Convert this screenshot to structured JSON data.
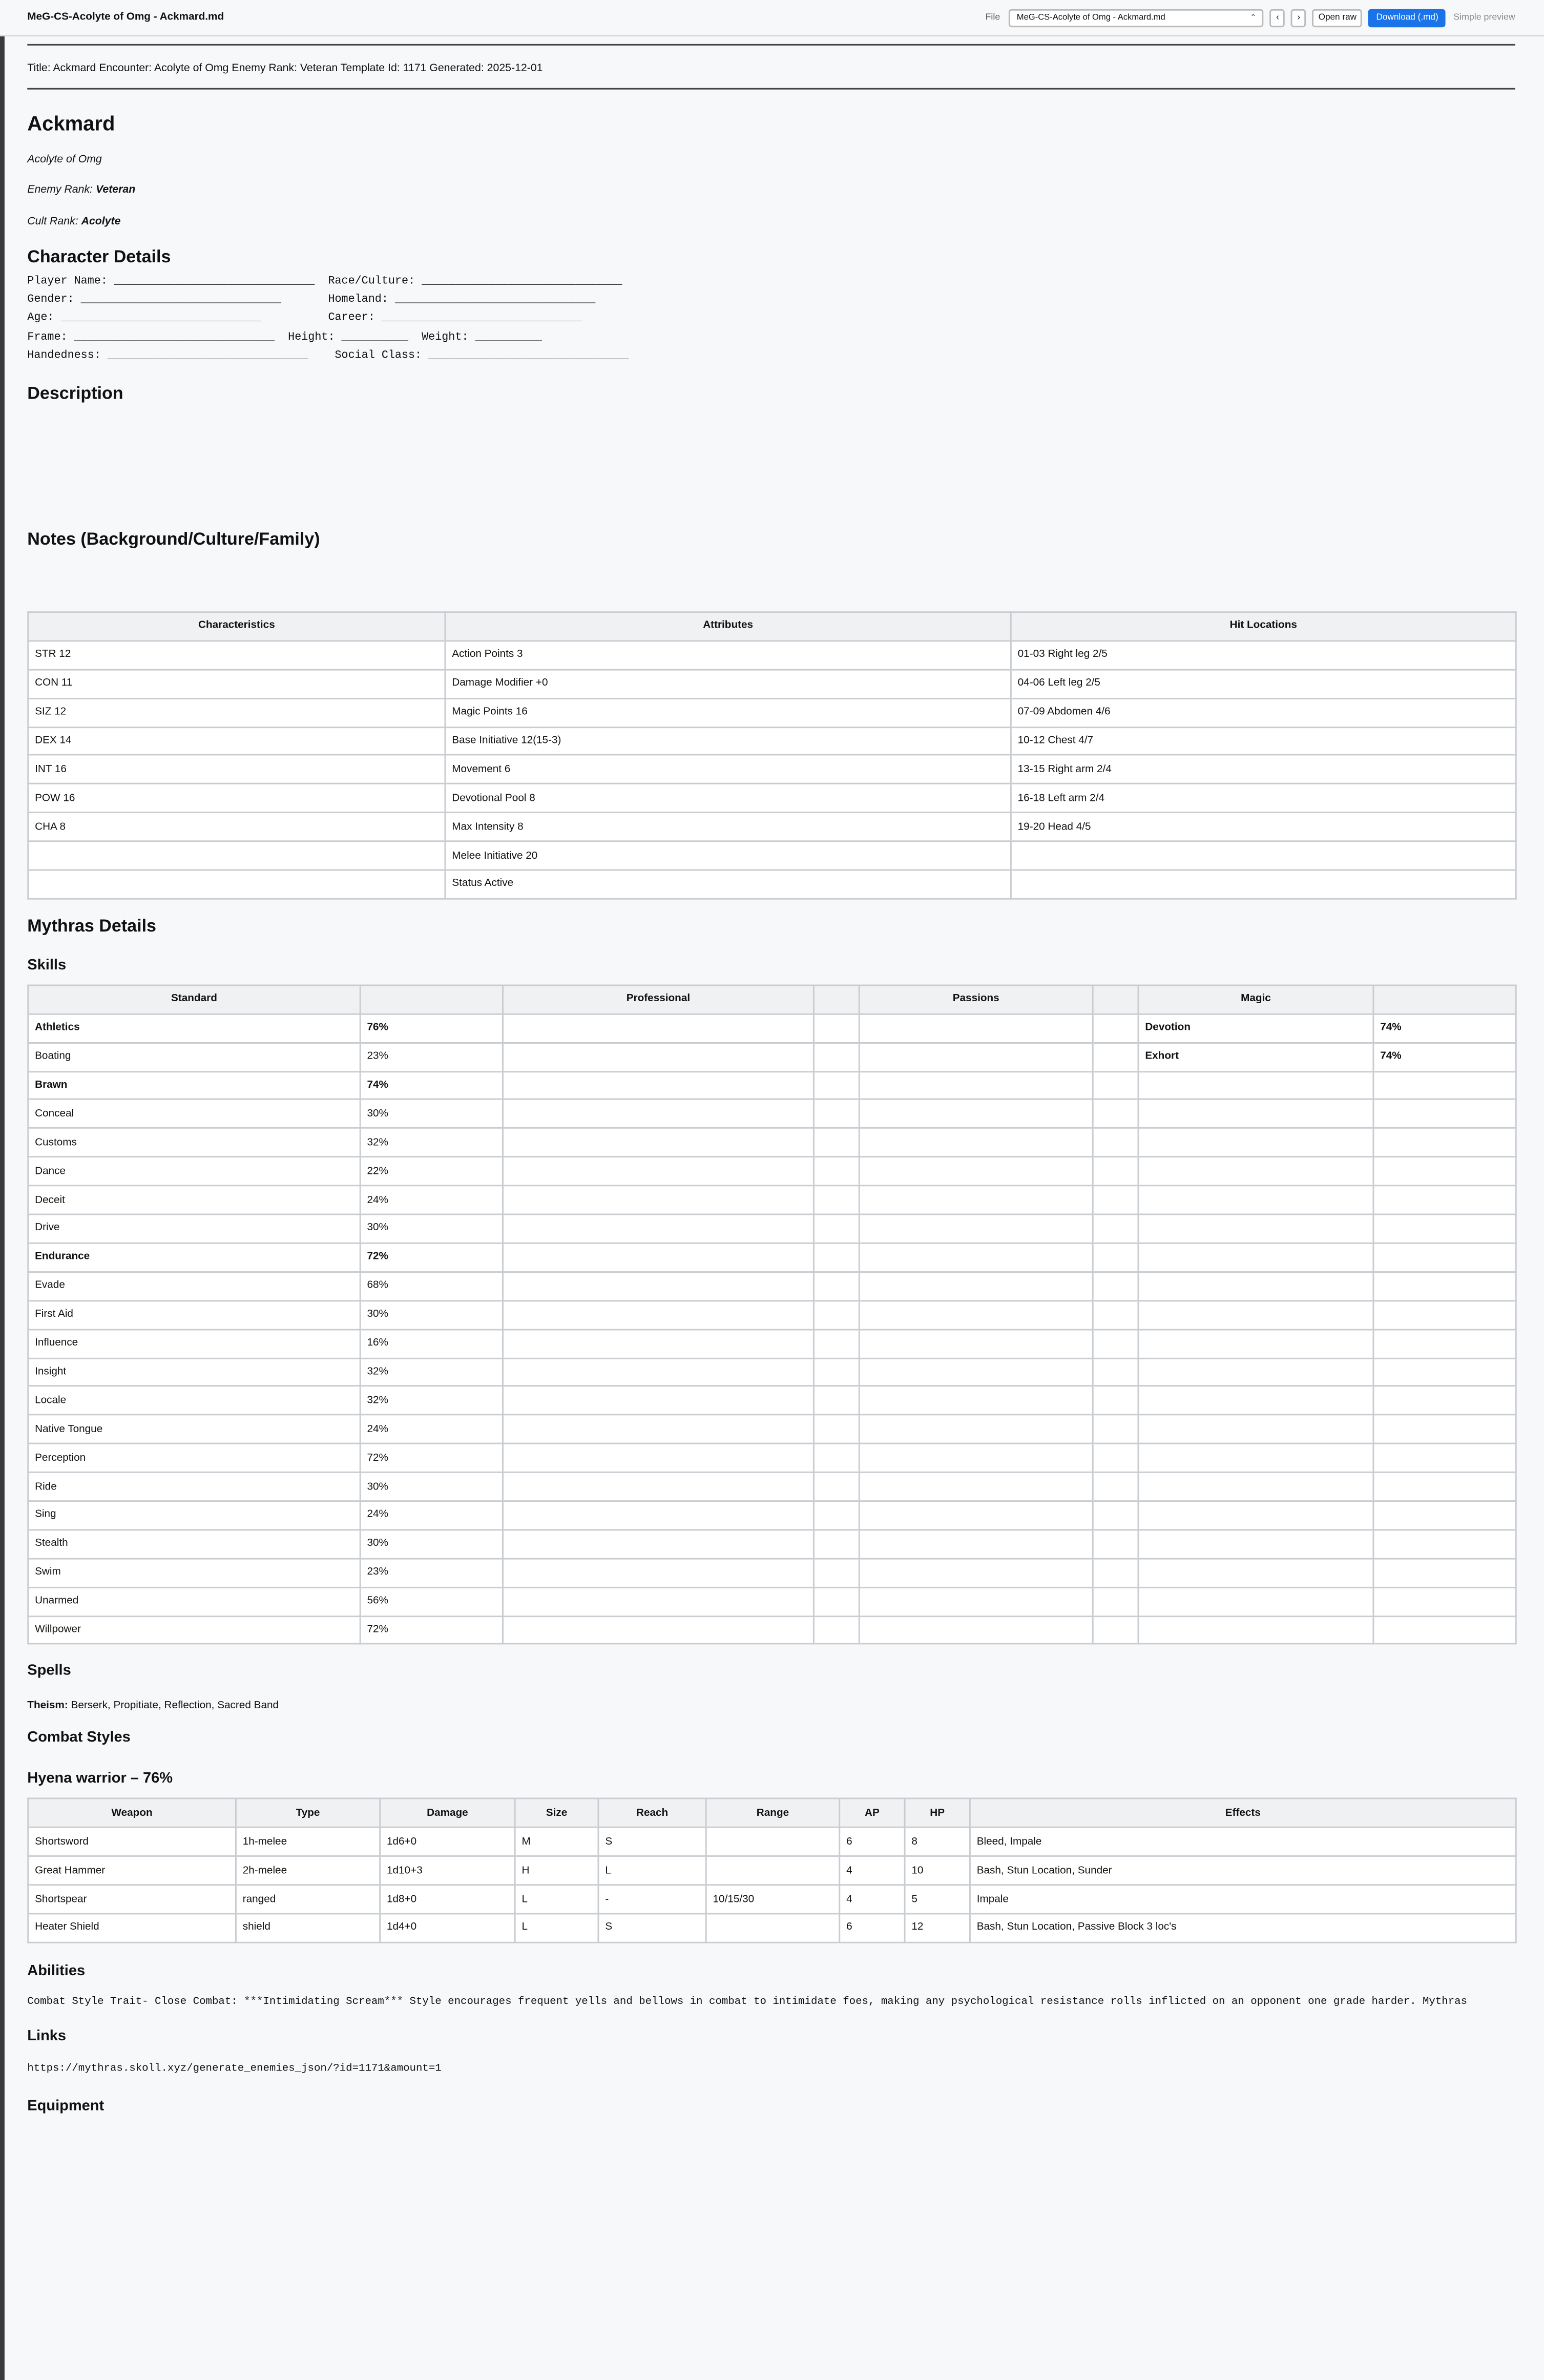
{
  "toolbar": {
    "file_title": "MeG-CS-Acolyte of Omg - Ackmard.md",
    "file_label": "File",
    "file_select": "MeG-CS-Acolyte of Omg - Ackmard.md",
    "prev": "‹",
    "next": "›",
    "open_raw": "Open raw",
    "download": "Download (.md)",
    "preview": "Simple preview"
  },
  "meta_line": "Title: Ackmard Encounter: Acolyte of Omg Enemy Rank: Veteran Template Id: 1171 Generated: 2025-12-01",
  "name": "Ackmard",
  "subtitle": "Acolyte of Omg",
  "ranks": [
    {
      "label": "Enemy Rank:",
      "value": "Veteran"
    },
    {
      "label": "Cult Rank:",
      "value": "Acolyte"
    }
  ],
  "character_details": {
    "heading": "Character Details",
    "lines": [
      "Player Name: ______________________________  Race/Culture: ______________________________",
      "Gender: ______________________________       Homeland: ______________________________",
      "Age: ______________________________          Career: ______________________________",
      "Frame: ______________________________  Height: __________  Weight: __________",
      "Handedness: ______________________________    Social Class: ______________________________"
    ]
  },
  "description_heading": "Description",
  "notes_heading": "Notes (Background/Culture/Family)",
  "stats_table": {
    "headers": [
      "Characteristics",
      "Attributes",
      "Hit Locations"
    ],
    "rows": [
      [
        "STR 12",
        "Action Points 3",
        "01-03 Right leg 2/5"
      ],
      [
        "CON 11",
        "Damage Modifier +0",
        "04-06 Left leg 2/5"
      ],
      [
        "SIZ 12",
        "Magic Points 16",
        "07-09 Abdomen 4/6"
      ],
      [
        "DEX 14",
        "Base Initiative 12(15-3)",
        "10-12 Chest 4/7"
      ],
      [
        "INT 16",
        "Movement 6",
        "13-15 Right arm 2/4"
      ],
      [
        "POW 16",
        "Devotional Pool 8",
        "16-18 Left arm 2/4"
      ],
      [
        "CHA 8",
        "Max Intensity 8",
        "19-20 Head 4/5"
      ],
      [
        null,
        "Melee Initiative 20",
        null
      ],
      [
        null,
        "Status Active",
        null
      ]
    ]
  },
  "mythras_heading": "Mythras Details",
  "skills_heading": "Skills",
  "skills_table": {
    "headers": [
      "Standard",
      null,
      "Professional",
      null,
      "Passions",
      null,
      "Magic",
      null
    ],
    "standard": [
      {
        "name": "Athletics",
        "value": "76%",
        "bold": true
      },
      {
        "name": "Boating",
        "value": "23%",
        "bold": false
      },
      {
        "name": "Brawn",
        "value": "74%",
        "bold": true
      },
      {
        "name": "Conceal",
        "value": "30%",
        "bold": false
      },
      {
        "name": "Customs",
        "value": "32%",
        "bold": false
      },
      {
        "name": "Dance",
        "value": "22%",
        "bold": false
      },
      {
        "name": "Deceit",
        "value": "24%",
        "bold": false
      },
      {
        "name": "Drive",
        "value": "30%",
        "bold": false
      },
      {
        "name": "Endurance",
        "value": "72%",
        "bold": true
      },
      {
        "name": "Evade",
        "value": "68%",
        "bold": false
      },
      {
        "name": "First Aid",
        "value": "30%",
        "bold": false
      },
      {
        "name": "Influence",
        "value": "16%",
        "bold": false
      },
      {
        "name": "Insight",
        "value": "32%",
        "bold": false
      },
      {
        "name": "Locale",
        "value": "32%",
        "bold": false
      },
      {
        "name": "Native Tongue",
        "value": "24%",
        "bold": false
      },
      {
        "name": "Perception",
        "value": "72%",
        "bold": false
      },
      {
        "name": "Ride",
        "value": "30%",
        "bold": false
      },
      {
        "name": "Sing",
        "value": "24%",
        "bold": false
      },
      {
        "name": "Stealth",
        "value": "30%",
        "bold": false
      },
      {
        "name": "Swim",
        "value": "23%",
        "bold": false
      },
      {
        "name": "Unarmed",
        "value": "56%",
        "bold": false
      },
      {
        "name": "Willpower",
        "value": "72%",
        "bold": false
      }
    ],
    "magic": [
      {
        "name": "Devotion",
        "value": "74%",
        "bold": true
      },
      {
        "name": "Exhort",
        "value": "74%",
        "bold": true
      }
    ]
  },
  "spells_heading": "Spells",
  "spells": {
    "label": "Theism:",
    "text": " Berserk, Propitiate, Reflection, Sacred Band"
  },
  "combat_heading": "Combat Styles",
  "style_heading": "Hyena warrior – 76%",
  "weapons_table": {
    "headers": [
      "Weapon",
      "Type",
      "Damage",
      "Size",
      "Reach",
      "Range",
      "AP",
      "HP",
      "Effects"
    ],
    "rows": [
      [
        "Shortsword",
        "1h-melee",
        "1d6+0",
        "M",
        "S",
        null,
        "6",
        "8",
        "Bleed, Impale"
      ],
      [
        "Great Hammer",
        "2h-melee",
        "1d10+3",
        "H",
        "L",
        null,
        "4",
        "10",
        "Bash, Stun Location, Sunder"
      ],
      [
        "Shortspear",
        "ranged",
        "1d8+0",
        "L",
        "-",
        "10/15/30",
        "4",
        "5",
        "Impale"
      ],
      [
        "Heater Shield",
        "shield",
        "1d4+0",
        "L",
        "S",
        null,
        "6",
        "12",
        "Bash, Stun Location, Passive Block 3 loc's"
      ]
    ]
  },
  "abilities_heading": "Abilities",
  "abilities_text": "Combat Style Trait- Close Combat: ***Intimidating Scream*** Style encourages frequent yells and bellows in combat to intimidate foes, making any psychological resistance rolls inflicted on an opponent one grade harder.  Mythras",
  "links_heading": "Links",
  "link": "https://mythras.skoll.xyz/generate_enemies_json/?id=1171&amount=1",
  "equipment_heading": "Equipment"
}
